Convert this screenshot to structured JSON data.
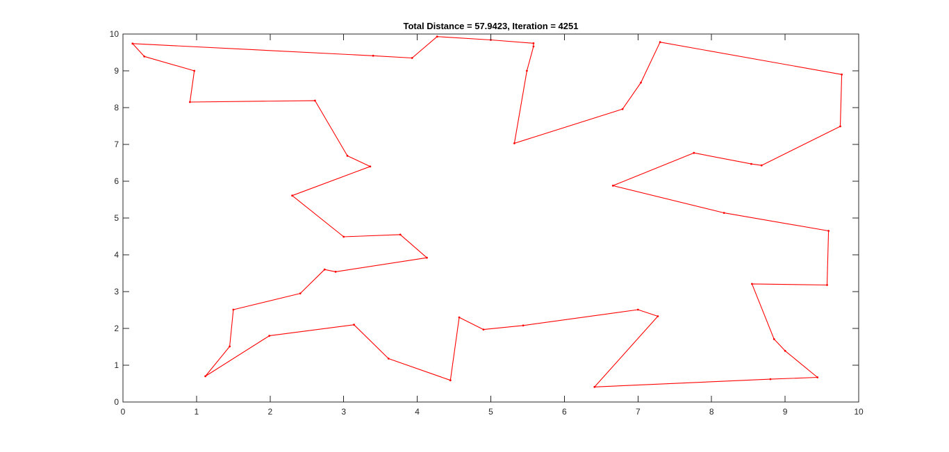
{
  "chart_data": {
    "type": "line",
    "title": "Total Distance = 57.9423, Iteration = 4251",
    "xlabel": "",
    "ylabel": "",
    "xlim": [
      0,
      10
    ],
    "ylim": [
      0,
      10
    ],
    "xticks": [
      0,
      1,
      2,
      3,
      4,
      5,
      6,
      7,
      8,
      9,
      10
    ],
    "yticks": [
      0,
      1,
      2,
      3,
      4,
      5,
      6,
      7,
      8,
      9,
      10
    ],
    "grid": false,
    "legend": "none",
    "line_color": "#ff0000",
    "series": [
      {
        "closed": true,
        "points": [
          [
            0.13,
            9.74
          ],
          [
            3.4,
            9.41
          ],
          [
            3.93,
            9.35
          ],
          [
            4.27,
            9.93
          ],
          [
            5.0,
            9.84
          ],
          [
            5.58,
            9.75
          ],
          [
            5.58,
            9.66
          ],
          [
            5.49,
            9.0
          ],
          [
            5.32,
            7.03
          ],
          [
            6.79,
            7.96
          ],
          [
            7.04,
            8.68
          ],
          [
            7.3,
            9.78
          ],
          [
            9.77,
            8.9
          ],
          [
            9.75,
            7.49
          ],
          [
            8.68,
            6.43
          ],
          [
            8.54,
            6.47
          ],
          [
            7.76,
            6.77
          ],
          [
            6.66,
            5.88
          ],
          [
            8.17,
            5.14
          ],
          [
            9.59,
            4.65
          ],
          [
            9.57,
            3.18
          ],
          [
            8.55,
            3.21
          ],
          [
            8.85,
            1.71
          ],
          [
            9.0,
            1.39
          ],
          [
            9.44,
            0.67
          ],
          [
            8.8,
            0.62
          ],
          [
            6.41,
            0.41
          ],
          [
            7.27,
            2.33
          ],
          [
            7.0,
            2.51
          ],
          [
            5.44,
            2.08
          ],
          [
            4.9,
            1.97
          ],
          [
            4.57,
            2.3
          ],
          [
            4.45,
            0.59
          ],
          [
            3.61,
            1.18
          ],
          [
            3.14,
            2.1
          ],
          [
            1.99,
            1.8
          ],
          [
            1.12,
            0.7
          ],
          [
            1.45,
            1.51
          ],
          [
            1.5,
            2.51
          ],
          [
            2.41,
            2.95
          ],
          [
            2.74,
            3.6
          ],
          [
            2.89,
            3.54
          ],
          [
            4.13,
            3.92
          ],
          [
            3.77,
            4.55
          ],
          [
            3.0,
            4.49
          ],
          [
            2.3,
            5.61
          ],
          [
            3.36,
            6.4
          ],
          [
            3.05,
            6.69
          ],
          [
            2.61,
            8.19
          ],
          [
            0.91,
            8.15
          ],
          [
            0.97,
            9.0
          ],
          [
            0.29,
            9.39
          ]
        ]
      }
    ]
  }
}
